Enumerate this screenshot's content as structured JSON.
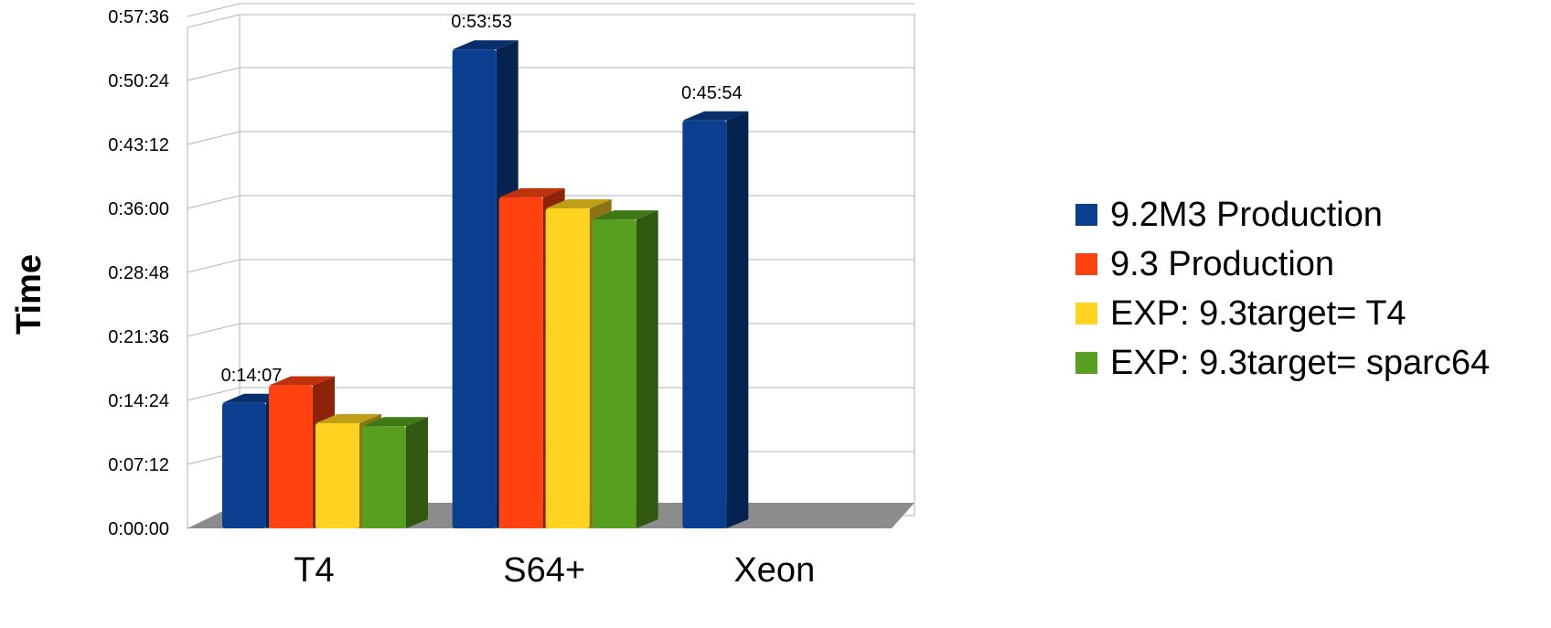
{
  "chart_data": {
    "type": "bar",
    "title": "",
    "xlabel": "",
    "ylabel": "Time",
    "categories": [
      "T4",
      "S64+",
      "Xeon"
    ],
    "y_ticks": [
      "0:00:00",
      "0:07:12",
      "0:14:24",
      "0:21:36",
      "0:28:48",
      "0:36:00",
      "0:43:12",
      "0:50:24",
      "0:57:36"
    ],
    "ylim": [
      "0:00:00",
      "0:57:36"
    ],
    "grid": true,
    "legend_position": "right",
    "series": [
      {
        "name": "9.2M3 Production",
        "color": "#0a3f8f",
        "values": [
          "0:14:07",
          "0:53:53",
          "0:45:54"
        ]
      },
      {
        "name": "9.3 Production",
        "color": "#ff4210",
        "values": [
          "0:16:05",
          "0:37:15",
          null
        ]
      },
      {
        "name": "EXP: 9.3target= T4",
        "color": "#ffd320",
        "values": [
          "0:11:50",
          "0:36:00",
          null
        ]
      },
      {
        "name": "EXP: 9.3target= sparc64",
        "color": "#57a01f",
        "values": [
          "0:11:30",
          "0:34:45",
          null
        ]
      }
    ],
    "data_labels": [
      {
        "series": 0,
        "category": 0,
        "text": "0:14:07"
      },
      {
        "series": 0,
        "category": 1,
        "text": "0:53:53"
      },
      {
        "series": 0,
        "category": 2,
        "text": "0:45:54"
      }
    ]
  }
}
